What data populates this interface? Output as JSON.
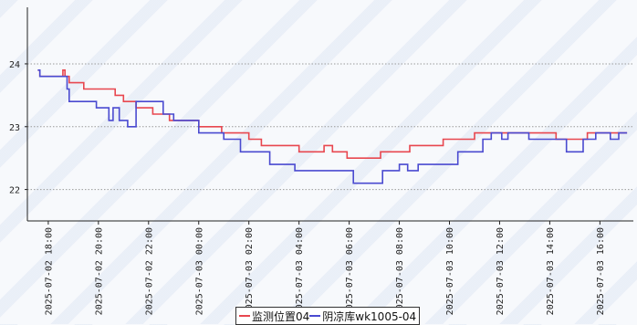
{
  "chart_data": {
    "type": "line",
    "title": "",
    "xlabel": "",
    "ylabel": "",
    "x_ticks": [
      "2025-07-02 18:00",
      "2025-07-02 20:00",
      "2025-07-02 22:00",
      "2025-07-03 00:00",
      "2025-07-03 02:00",
      "2025-07-03 04:00",
      "2025-07-03 06:00",
      "2025-07-03 08:00",
      "2025-07-03 10:00",
      "2025-07-03 12:00",
      "2025-07-03 14:00",
      "2025-07-03 16:00"
    ],
    "x_range": [
      "2025-07-02 17:10",
      "2025-07-03 17:20"
    ],
    "y_ticks": [
      22,
      23,
      24
    ],
    "ylim": [
      21.5,
      24.9
    ],
    "grid": "horizontal dotted",
    "legend_position": "bottom-center",
    "series": [
      {
        "name": "监测位置04",
        "color": "#e8474f",
        "points": [
          [
            "2025-07-02 17:35",
            23.9
          ],
          [
            "2025-07-02 17:40",
            23.8
          ],
          [
            "2025-07-02 18:30",
            23.8
          ],
          [
            "2025-07-02 18:35",
            23.9
          ],
          [
            "2025-07-02 18:40",
            23.8
          ],
          [
            "2025-07-02 18:50",
            23.7
          ],
          [
            "2025-07-02 19:25",
            23.6
          ],
          [
            "2025-07-02 20:40",
            23.5
          ],
          [
            "2025-07-02 21:00",
            23.4
          ],
          [
            "2025-07-02 21:30",
            23.3
          ],
          [
            "2025-07-02 22:10",
            23.2
          ],
          [
            "2025-07-02 22:50",
            23.1
          ],
          [
            "2025-07-03 00:00",
            23.0
          ],
          [
            "2025-07-03 00:50",
            23.0
          ],
          [
            "2025-07-03 00:55",
            22.9
          ],
          [
            "2025-07-03 02:00",
            22.8
          ],
          [
            "2025-07-03 02:30",
            22.7
          ],
          [
            "2025-07-03 04:00",
            22.6
          ],
          [
            "2025-07-03 05:00",
            22.7
          ],
          [
            "2025-07-03 05:20",
            22.6
          ],
          [
            "2025-07-03 05:55",
            22.5
          ],
          [
            "2025-07-03 07:15",
            22.6
          ],
          [
            "2025-07-03 08:25",
            22.7
          ],
          [
            "2025-07-03 09:45",
            22.8
          ],
          [
            "2025-07-03 10:30",
            22.8
          ],
          [
            "2025-07-03 11:00",
            22.9
          ],
          [
            "2025-07-03 14:15",
            22.8
          ],
          [
            "2025-07-03 15:30",
            22.9
          ],
          [
            "2025-07-03 17:05",
            22.9
          ]
        ]
      },
      {
        "name": "阴凉库wk1005-04",
        "color": "#4a4ad0",
        "points": [
          [
            "2025-07-02 17:35",
            23.9
          ],
          [
            "2025-07-02 17:40",
            23.8
          ],
          [
            "2025-07-02 18:40",
            23.8
          ],
          [
            "2025-07-02 18:45",
            23.6
          ],
          [
            "2025-07-02 18:50",
            23.4
          ],
          [
            "2025-07-02 19:55",
            23.3
          ],
          [
            "2025-07-02 20:25",
            23.1
          ],
          [
            "2025-07-02 20:35",
            23.3
          ],
          [
            "2025-07-02 20:50",
            23.1
          ],
          [
            "2025-07-02 21:10",
            23.0
          ],
          [
            "2025-07-02 21:30",
            23.4
          ],
          [
            "2025-07-02 22:35",
            23.2
          ],
          [
            "2025-07-02 23:00",
            23.1
          ],
          [
            "2025-07-03 00:00",
            22.9
          ],
          [
            "2025-07-03 01:00",
            22.8
          ],
          [
            "2025-07-03 01:40",
            22.6
          ],
          [
            "2025-07-03 02:50",
            22.4
          ],
          [
            "2025-07-03 03:50",
            22.3
          ],
          [
            "2025-07-03 06:10",
            22.1
          ],
          [
            "2025-07-03 07:20",
            22.3
          ],
          [
            "2025-07-03 08:00",
            22.4
          ],
          [
            "2025-07-03 08:20",
            22.3
          ],
          [
            "2025-07-03 08:45",
            22.4
          ],
          [
            "2025-07-03 10:20",
            22.6
          ],
          [
            "2025-07-03 11:20",
            22.8
          ],
          [
            "2025-07-03 11:40",
            22.9
          ],
          [
            "2025-07-03 12:05",
            22.8
          ],
          [
            "2025-07-03 12:20",
            22.9
          ],
          [
            "2025-07-03 13:10",
            22.8
          ],
          [
            "2025-07-03 14:40",
            22.6
          ],
          [
            "2025-07-03 15:20",
            22.8
          ],
          [
            "2025-07-03 15:50",
            22.9
          ],
          [
            "2025-07-03 16:15",
            22.9
          ],
          [
            "2025-07-03 16:25",
            22.8
          ],
          [
            "2025-07-03 16:45",
            22.9
          ],
          [
            "2025-07-03 17:05",
            22.9
          ]
        ]
      }
    ]
  }
}
